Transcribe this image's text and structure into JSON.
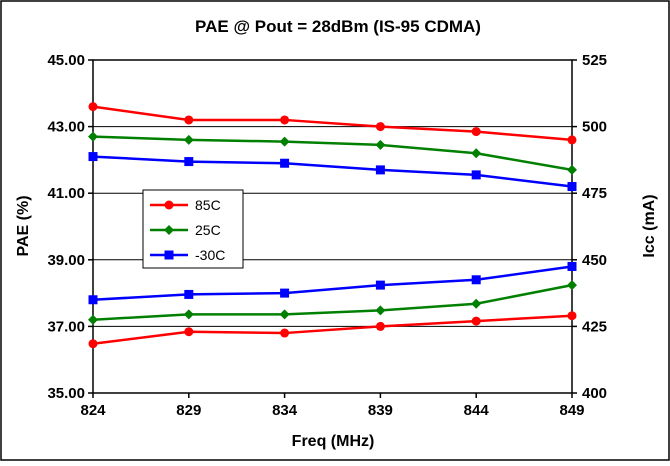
{
  "chart_data": {
    "type": "line",
    "title": "PAE @ Pout = 28dBm (IS-95 CDMA)",
    "xlabel": "Freq (MHz)",
    "ylabel_left": "PAE (%)",
    "ylabel_right": "Icc (mA)",
    "x": [
      824,
      829,
      834,
      839,
      844,
      849
    ],
    "xlim": [
      824,
      849
    ],
    "ylim_left": [
      35,
      45
    ],
    "ylim_right": [
      400,
      525
    ],
    "yticks_left": [
      "35.00",
      "37.00",
      "39.00",
      "41.00",
      "43.00",
      "45.00"
    ],
    "yticks_right": [
      "400",
      "425",
      "450",
      "475",
      "500",
      "525"
    ],
    "grid": true,
    "legend_placement": "center-left",
    "series": [
      {
        "name": "85C",
        "axis": "left",
        "color": "#ff0000",
        "marker": "circle",
        "values": [
          43.6,
          43.2,
          43.2,
          43.0,
          42.85,
          42.6
        ]
      },
      {
        "name": "25C",
        "axis": "left",
        "color": "#008000",
        "marker": "diamond",
        "values": [
          42.7,
          42.6,
          42.55,
          42.45,
          42.2,
          41.7
        ]
      },
      {
        "name": "-30C",
        "axis": "left",
        "color": "#0000ff",
        "marker": "square",
        "values": [
          42.1,
          41.95,
          41.9,
          41.7,
          41.55,
          41.2
        ]
      },
      {
        "name": "85C",
        "axis": "right",
        "color": "#ff0000",
        "marker": "circle",
        "values": [
          418.5,
          423.0,
          422.5,
          425.0,
          427.0,
          429.0
        ]
      },
      {
        "name": "25C",
        "axis": "right",
        "color": "#008000",
        "marker": "diamond",
        "values": [
          427.5,
          429.5,
          429.5,
          431.0,
          433.5,
          440.5
        ]
      },
      {
        "name": "-30C",
        "axis": "right",
        "color": "#0000ff",
        "marker": "square",
        "values": [
          435.0,
          437.0,
          437.5,
          440.5,
          442.5,
          447.5
        ]
      }
    ],
    "legend": [
      "85C",
      "25C",
      "-30C"
    ]
  }
}
